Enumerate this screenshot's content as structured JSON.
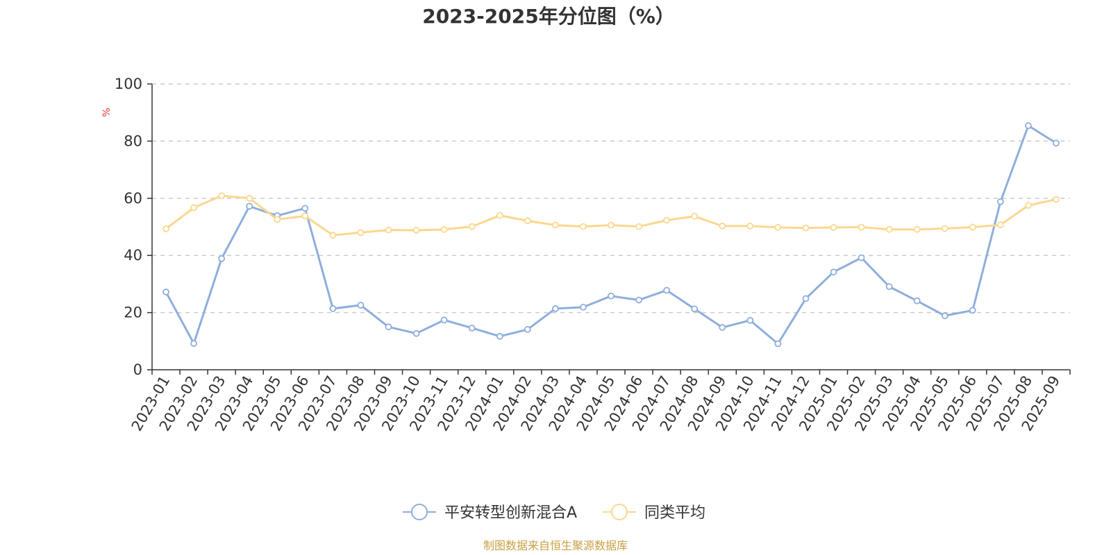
{
  "chart_data": {
    "type": "line",
    "title": "2023-2025年分位图（%）",
    "ylabel": "%",
    "ylim": [
      0,
      100
    ],
    "yticks": [
      0,
      20,
      40,
      60,
      80,
      100
    ],
    "grid": "horizontal-dashed",
    "legend_position": "bottom-center",
    "categories": [
      "2023-01",
      "2023-02",
      "2023-03",
      "2023-04",
      "2023-05",
      "2023-06",
      "2023-07",
      "2023-08",
      "2023-09",
      "2023-10",
      "2023-11",
      "2023-12",
      "2024-01",
      "2024-02",
      "2024-03",
      "2024-04",
      "2024-05",
      "2024-06",
      "2024-07",
      "2024-08",
      "2024-09",
      "2024-10",
      "2024-11",
      "2024-12",
      "2025-01",
      "2025-02",
      "2025-03",
      "2025-04",
      "2025-05",
      "2025-06",
      "2025-07",
      "2025-08",
      "2025-09"
    ],
    "series": [
      {
        "name": "平安转型创新混合A",
        "color": "#8eaedc",
        "values": [
          27.2,
          9.2,
          38.9,
          57.2,
          53.9,
          56.5,
          21.4,
          22.6,
          15.0,
          12.7,
          17.4,
          14.6,
          11.7,
          14.1,
          21.4,
          21.9,
          25.8,
          24.4,
          27.8,
          21.3,
          14.8,
          17.3,
          9.1,
          24.9,
          34.2,
          39.2,
          29.1,
          24.1,
          18.9,
          20.8,
          58.8,
          85.4,
          79.3
        ]
      },
      {
        "name": "同类平均",
        "color": "#fbd78e",
        "values": [
          49.3,
          56.7,
          60.9,
          60.0,
          52.6,
          53.8,
          47.1,
          48.0,
          48.9,
          48.8,
          49.1,
          50.1,
          54.0,
          52.1,
          50.6,
          50.1,
          50.6,
          50.1,
          52.3,
          53.7,
          50.3,
          50.3,
          49.8,
          49.6,
          49.8,
          49.9,
          49.1,
          49.1,
          49.4,
          49.9,
          50.7,
          57.5,
          59.6
        ]
      }
    ]
  },
  "colors": {
    "unit_label": "#e0342b",
    "source_text": "#c8a046",
    "axis": "#333333",
    "grid": "#cccccc"
  },
  "source": "制图数据来自恒生聚源数据库"
}
